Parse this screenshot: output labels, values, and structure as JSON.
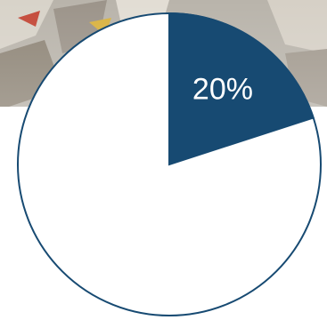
{
  "chart_data": {
    "type": "pie",
    "values": [
      20
    ],
    "value_labels": [
      "20%"
    ],
    "colors": [
      "#174a72"
    ]
  }
}
